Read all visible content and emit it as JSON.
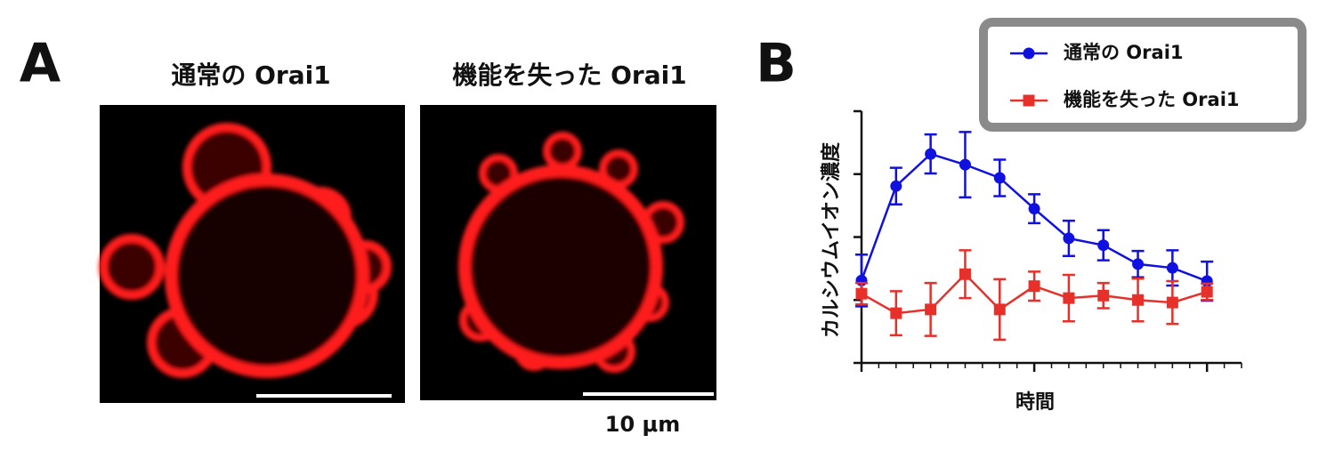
{
  "panel_a": {
    "label": "A",
    "images": [
      {
        "title": "通常の Orai1"
      },
      {
        "title": "機能を失った Orai1"
      }
    ],
    "scale_bar": "10 μm"
  },
  "chart_data": {
    "type": "line",
    "panel_label": "B",
    "xlabel": "時間",
    "ylabel": "カルシウムイオン濃度",
    "x": [
      0,
      2,
      4,
      6,
      8,
      10,
      12,
      14,
      16,
      18,
      20
    ],
    "xlim": [
      0,
      22
    ],
    "xticks": [
      0,
      1,
      2,
      3,
      4,
      5,
      6,
      7,
      8,
      9,
      10,
      11,
      12,
      13,
      14,
      15,
      16,
      17,
      18,
      19,
      20,
      21,
      22
    ],
    "xmajorticks": [
      0,
      10,
      20
    ],
    "ylim": [
      0,
      4
    ],
    "yticks": [
      0,
      1,
      2,
      3,
      4
    ],
    "legend": "upper right",
    "series": [
      {
        "name": "通常の Orai1",
        "color": "#1010e0",
        "marker": "circle",
        "values": [
          1.31,
          2.81,
          3.32,
          3.15,
          2.94,
          2.45,
          1.98,
          1.87,
          1.57,
          1.51,
          1.3
        ],
        "errors": [
          0.41,
          0.29,
          0.31,
          0.52,
          0.29,
          0.23,
          0.28,
          0.24,
          0.21,
          0.28,
          0.31
        ]
      },
      {
        "name": "機能を失った Orai1",
        "color": "#e8302a",
        "marker": "square",
        "values": [
          1.1,
          0.79,
          0.85,
          1.41,
          0.85,
          1.22,
          1.03,
          1.07,
          1.0,
          0.96,
          1.13
        ],
        "errors": [
          0.17,
          0.35,
          0.42,
          0.38,
          0.48,
          0.23,
          0.37,
          0.2,
          0.34,
          0.34,
          0.13
        ]
      }
    ]
  }
}
